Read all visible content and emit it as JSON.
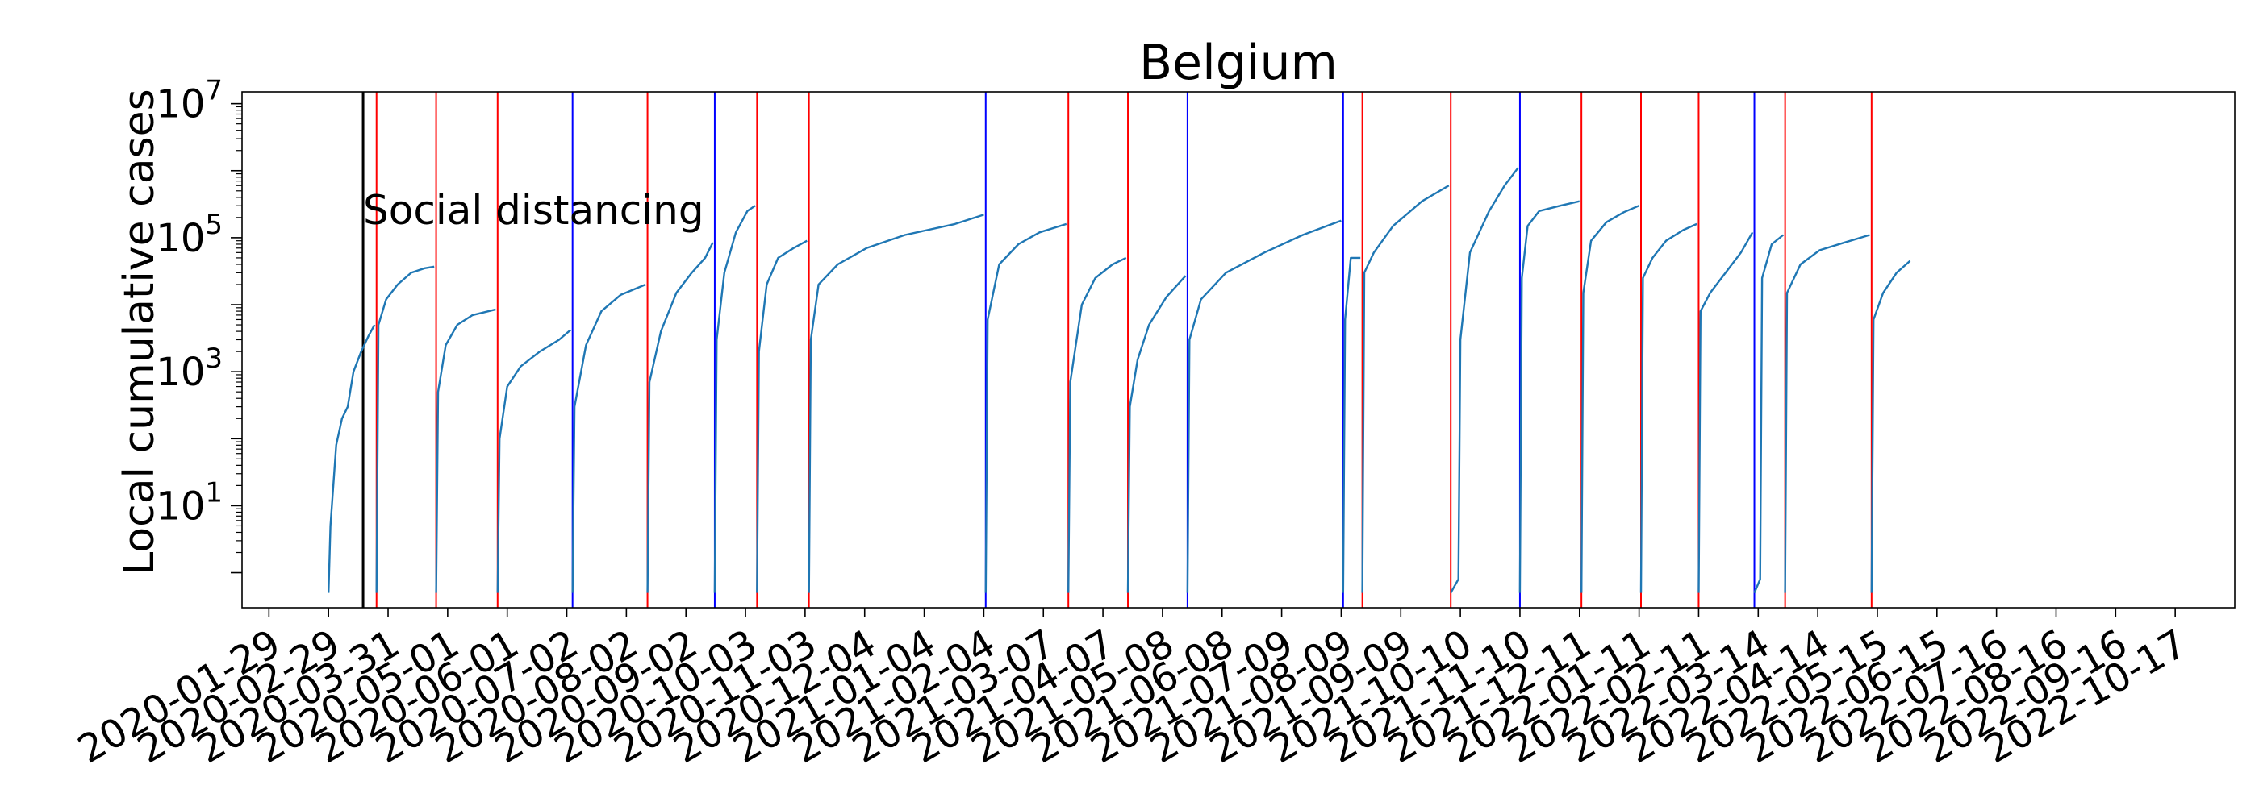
{
  "chart_data": {
    "type": "line",
    "title": "Belgium",
    "xlabel": "",
    "ylabel": "Local cumulative cases",
    "yscale": "log",
    "ylim": [
      0.3,
      15000000
    ],
    "xlim": [
      "2020-01-15",
      "2022-11-17"
    ],
    "grid": false,
    "x_tick_labels": [
      "2020-01-29",
      "2020-02-29",
      "2020-03-31",
      "2020-05-01",
      "2020-06-01",
      "2020-07-02",
      "2020-08-02",
      "2020-09-02",
      "2020-10-03",
      "2020-11-03",
      "2020-12-04",
      "2021-01-04",
      "2021-02-04",
      "2021-03-07",
      "2021-04-07",
      "2021-05-08",
      "2021-06-08",
      "2021-07-09",
      "2021-08-09",
      "2021-09-09",
      "2021-10-10",
      "2021-11-10",
      "2021-12-11",
      "2022-01-11",
      "2022-02-11",
      "2022-03-14",
      "2022-04-14",
      "2022-05-15",
      "2022-06-15",
      "2022-07-16",
      "2022-08-16",
      "2022-09-16",
      "2022-10-17"
    ],
    "y_ticks": [
      {
        "value": 10,
        "base": "10",
        "exp": "1"
      },
      {
        "value": 1000,
        "base": "10",
        "exp": "3"
      },
      {
        "value": 100000,
        "base": "10",
        "exp": "5"
      },
      {
        "value": 10000000,
        "base": "10",
        "exp": "7"
      }
    ],
    "annotation": {
      "text": "Social distancing",
      "date": "2020-03-18",
      "color": "#000000"
    },
    "line_color": "#1f77b4",
    "event_lines": [
      {
        "date": "2020-03-25",
        "color": "#ff0000"
      },
      {
        "date": "2020-04-25",
        "color": "#ff0000"
      },
      {
        "date": "2020-05-27",
        "color": "#ff0000"
      },
      {
        "date": "2020-07-05",
        "color": "#0000ff"
      },
      {
        "date": "2020-08-13",
        "color": "#ff0000"
      },
      {
        "date": "2020-09-17",
        "color": "#0000ff"
      },
      {
        "date": "2020-10-09",
        "color": "#ff0000"
      },
      {
        "date": "2020-11-05",
        "color": "#ff0000"
      },
      {
        "date": "2021-02-05",
        "color": "#0000ff"
      },
      {
        "date": "2021-03-20",
        "color": "#ff0000"
      },
      {
        "date": "2021-04-20",
        "color": "#ff0000"
      },
      {
        "date": "2021-05-21",
        "color": "#0000ff"
      },
      {
        "date": "2021-08-10",
        "color": "#0000ff"
      },
      {
        "date": "2021-08-20",
        "color": "#ff0000"
      },
      {
        "date": "2021-10-05",
        "color": "#ff0000"
      },
      {
        "date": "2021-11-10",
        "color": "#0000ff"
      },
      {
        "date": "2021-12-12",
        "color": "#ff0000"
      },
      {
        "date": "2022-01-12",
        "color": "#ff0000"
      },
      {
        "date": "2022-02-11",
        "color": "#ff0000"
      },
      {
        "date": "2022-03-12",
        "color": "#0000ff"
      },
      {
        "date": "2022-03-28",
        "color": "#ff0000"
      },
      {
        "date": "2022-05-12",
        "color": "#ff0000"
      }
    ],
    "segments": [
      {
        "points": [
          [
            "2020-02-29",
            0.5
          ],
          [
            "2020-03-01",
            5
          ],
          [
            "2020-03-04",
            80
          ],
          [
            "2020-03-07",
            200
          ],
          [
            "2020-03-10",
            300
          ],
          [
            "2020-03-13",
            1000
          ],
          [
            "2020-03-17",
            2000
          ],
          [
            "2020-03-21",
            3500
          ],
          [
            "2020-03-24",
            5000
          ]
        ]
      },
      {
        "points": [
          [
            "2020-03-25",
            0.5
          ],
          [
            "2020-03-26",
            5000
          ],
          [
            "2020-03-30",
            12000
          ],
          [
            "2020-04-05",
            20000
          ],
          [
            "2020-04-12",
            30000
          ],
          [
            "2020-04-19",
            35000
          ],
          [
            "2020-04-24",
            37000
          ]
        ]
      },
      {
        "points": [
          [
            "2020-04-25",
            0.5
          ],
          [
            "2020-04-26",
            500
          ],
          [
            "2020-04-30",
            2500
          ],
          [
            "2020-05-06",
            5000
          ],
          [
            "2020-05-14",
            7000
          ],
          [
            "2020-05-26",
            8500
          ]
        ]
      },
      {
        "points": [
          [
            "2020-05-27",
            0.5
          ],
          [
            "2020-05-28",
            100
          ],
          [
            "2020-06-01",
            600
          ],
          [
            "2020-06-08",
            1200
          ],
          [
            "2020-06-18",
            2000
          ],
          [
            "2020-06-28",
            3000
          ],
          [
            "2020-07-04",
            4200
          ]
        ]
      },
      {
        "points": [
          [
            "2020-07-05",
            0.5
          ],
          [
            "2020-07-06",
            300
          ],
          [
            "2020-07-12",
            2500
          ],
          [
            "2020-07-20",
            8000
          ],
          [
            "2020-07-30",
            14000
          ],
          [
            "2020-08-12",
            20000
          ]
        ]
      },
      {
        "points": [
          [
            "2020-08-13",
            0.5
          ],
          [
            "2020-08-14",
            700
          ],
          [
            "2020-08-20",
            4000
          ],
          [
            "2020-08-28",
            15000
          ],
          [
            "2020-09-05",
            30000
          ],
          [
            "2020-09-12",
            50000
          ],
          [
            "2020-09-16",
            85000
          ]
        ]
      },
      {
        "points": [
          [
            "2020-09-17",
            0.5
          ],
          [
            "2020-09-18",
            3000
          ],
          [
            "2020-09-22",
            30000
          ],
          [
            "2020-09-28",
            120000
          ],
          [
            "2020-10-04",
            250000
          ],
          [
            "2020-10-08",
            300000
          ]
        ]
      },
      {
        "points": [
          [
            "2020-10-09",
            0.5
          ],
          [
            "2020-10-10",
            2000
          ],
          [
            "2020-10-14",
            20000
          ],
          [
            "2020-10-20",
            50000
          ],
          [
            "2020-10-28",
            70000
          ],
          [
            "2020-11-04",
            90000
          ]
        ]
      },
      {
        "points": [
          [
            "2020-11-05",
            0.5
          ],
          [
            "2020-11-06",
            3000
          ],
          [
            "2020-11-10",
            20000
          ],
          [
            "2020-11-20",
            40000
          ],
          [
            "2020-12-05",
            70000
          ],
          [
            "2020-12-25",
            110000
          ],
          [
            "2021-01-20",
            160000
          ],
          [
            "2021-02-04",
            220000
          ]
        ]
      },
      {
        "points": [
          [
            "2021-02-05",
            0.5
          ],
          [
            "2021-02-06",
            6000
          ],
          [
            "2021-02-12",
            40000
          ],
          [
            "2021-02-22",
            80000
          ],
          [
            "2021-03-05",
            120000
          ],
          [
            "2021-03-19",
            160000
          ]
        ]
      },
      {
        "points": [
          [
            "2021-03-20",
            0.5
          ],
          [
            "2021-03-21",
            700
          ],
          [
            "2021-03-27",
            10000
          ],
          [
            "2021-04-03",
            25000
          ],
          [
            "2021-04-12",
            40000
          ],
          [
            "2021-04-19",
            50000
          ]
        ]
      },
      {
        "points": [
          [
            "2021-04-20",
            0.5
          ],
          [
            "2021-04-21",
            300
          ],
          [
            "2021-04-25",
            1500
          ],
          [
            "2021-05-01",
            5000
          ],
          [
            "2021-05-10",
            13000
          ],
          [
            "2021-05-20",
            27000
          ]
        ]
      },
      {
        "points": [
          [
            "2021-05-21",
            0.5
          ],
          [
            "2021-05-22",
            3000
          ],
          [
            "2021-05-28",
            12000
          ],
          [
            "2021-06-10",
            30000
          ],
          [
            "2021-06-30",
            60000
          ],
          [
            "2021-07-20",
            110000
          ],
          [
            "2021-08-09",
            180000
          ]
        ]
      },
      {
        "points": [
          [
            "2021-08-10",
            0.5
          ],
          [
            "2021-08-11",
            6000
          ],
          [
            "2021-08-14",
            50000
          ],
          [
            "2021-08-19",
            50000
          ]
        ]
      },
      {
        "points": [
          [
            "2021-08-20",
            0.5
          ],
          [
            "2021-08-21",
            30000
          ],
          [
            "2021-08-26",
            60000
          ],
          [
            "2021-09-05",
            150000
          ],
          [
            "2021-09-20",
            350000
          ],
          [
            "2021-10-04",
            600000
          ]
        ]
      },
      {
        "points": [
          [
            "2021-10-05",
            0.5
          ],
          [
            "2021-10-09",
            0.8
          ],
          [
            "2021-10-10",
            3000
          ],
          [
            "2021-10-15",
            60000
          ],
          [
            "2021-10-25",
            250000
          ],
          [
            "2021-11-02",
            600000
          ],
          [
            "2021-11-09",
            1100000
          ]
        ]
      },
      {
        "points": [
          [
            "2021-11-10",
            0.5
          ],
          [
            "2021-11-11",
            25000
          ],
          [
            "2021-11-14",
            150000
          ],
          [
            "2021-11-20",
            250000
          ],
          [
            "2021-12-01",
            300000
          ],
          [
            "2021-12-11",
            350000
          ]
        ]
      },
      {
        "points": [
          [
            "2021-12-12",
            0.5
          ],
          [
            "2021-12-13",
            15000
          ],
          [
            "2021-12-17",
            90000
          ],
          [
            "2021-12-25",
            170000
          ],
          [
            "2022-01-03",
            240000
          ],
          [
            "2022-01-11",
            300000
          ]
        ]
      },
      {
        "points": [
          [
            "2022-01-12",
            0.5
          ],
          [
            "2022-01-13",
            25000
          ],
          [
            "2022-01-18",
            50000
          ],
          [
            "2022-01-25",
            90000
          ],
          [
            "2022-02-03",
            130000
          ],
          [
            "2022-02-10",
            160000
          ]
        ]
      },
      {
        "points": [
          [
            "2022-02-11",
            0.5
          ],
          [
            "2022-02-12",
            8000
          ],
          [
            "2022-02-17",
            15000
          ],
          [
            "2022-02-25",
            30000
          ],
          [
            "2022-03-05",
            60000
          ],
          [
            "2022-03-11",
            120000
          ]
        ]
      },
      {
        "points": [
          [
            "2022-03-12",
            0.5
          ],
          [
            "2022-03-15",
            0.8
          ],
          [
            "2022-03-16",
            25000
          ],
          [
            "2022-03-21",
            80000
          ],
          [
            "2022-03-27",
            110000
          ]
        ]
      },
      {
        "points": [
          [
            "2022-03-28",
            0.5
          ],
          [
            "2022-03-29",
            15000
          ],
          [
            "2022-04-05",
            40000
          ],
          [
            "2022-04-15",
            65000
          ],
          [
            "2022-04-28",
            85000
          ],
          [
            "2022-05-11",
            110000
          ]
        ]
      },
      {
        "points": [
          [
            "2022-05-12",
            0.5
          ],
          [
            "2022-05-13",
            6000
          ],
          [
            "2022-05-18",
            15000
          ],
          [
            "2022-05-25",
            30000
          ],
          [
            "2022-06-01",
            45000
          ]
        ]
      }
    ]
  }
}
